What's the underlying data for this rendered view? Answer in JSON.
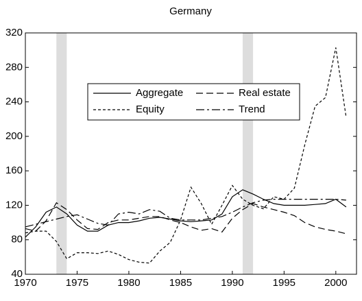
{
  "chart_data": {
    "type": "line",
    "title": "Germany",
    "x": [
      1970,
      1971,
      1972,
      1973,
      1974,
      1975,
      1976,
      1977,
      1978,
      1979,
      1980,
      1981,
      1982,
      1983,
      1984,
      1985,
      1986,
      1987,
      1988,
      1989,
      1990,
      1991,
      1992,
      1993,
      1994,
      1995,
      1996,
      1997,
      1998,
      1999,
      2000,
      2001
    ],
    "series": [
      {
        "name": "Aggregate",
        "color": "#000000",
        "dash": "solid",
        "values": [
          83,
          95,
          112,
          118,
          110,
          97,
          90,
          90,
          97,
          100,
          100,
          102,
          105,
          106,
          104,
          102,
          101,
          102,
          103,
          110,
          130,
          138,
          133,
          127,
          122,
          120,
          120,
          120,
          121,
          122,
          127,
          118
        ]
      },
      {
        "name": "Real estate",
        "color": "#000000",
        "dash": "long",
        "values": [
          93,
          90,
          102,
          123,
          115,
          103,
          93,
          92,
          100,
          103,
          103,
          105,
          107,
          107,
          103,
          100,
          95,
          91,
          93,
          89,
          105,
          115,
          122,
          118,
          115,
          112,
          108,
          100,
          95,
          92,
          90,
          87
        ]
      },
      {
        "name": "Equity",
        "color": "#000000",
        "dash": "short",
        "values": [
          88,
          90,
          90,
          78,
          58,
          65,
          65,
          64,
          67,
          63,
          57,
          54,
          53,
          67,
          77,
          103,
          141,
          122,
          98,
          120,
          143,
          127,
          120,
          116,
          130,
          127,
          140,
          190,
          235,
          245,
          303,
          222
        ]
      },
      {
        "name": "Trend",
        "color": "#000000",
        "dash": "dashdot",
        "values": [
          95,
          98,
          101,
          104,
          107,
          109,
          104,
          99,
          97,
          110,
          112,
          110,
          115,
          113,
          105,
          103,
          103,
          103,
          105,
          107,
          112,
          118,
          123,
          126,
          127,
          127,
          127,
          127,
          127,
          127,
          127,
          126
        ]
      }
    ],
    "shaded_periods": [
      [
        1973,
        1974
      ],
      [
        1991,
        1992
      ]
    ],
    "shade_color": "#dddddd",
    "xlim": [
      1970,
      2002
    ],
    "xticks": [
      1970,
      1975,
      1980,
      1985,
      1990,
      1995,
      2000
    ],
    "ylim": [
      40,
      320
    ],
    "yticks": [
      40,
      80,
      120,
      160,
      200,
      240,
      280,
      320
    ],
    "grid": false,
    "legend": "upper center"
  }
}
